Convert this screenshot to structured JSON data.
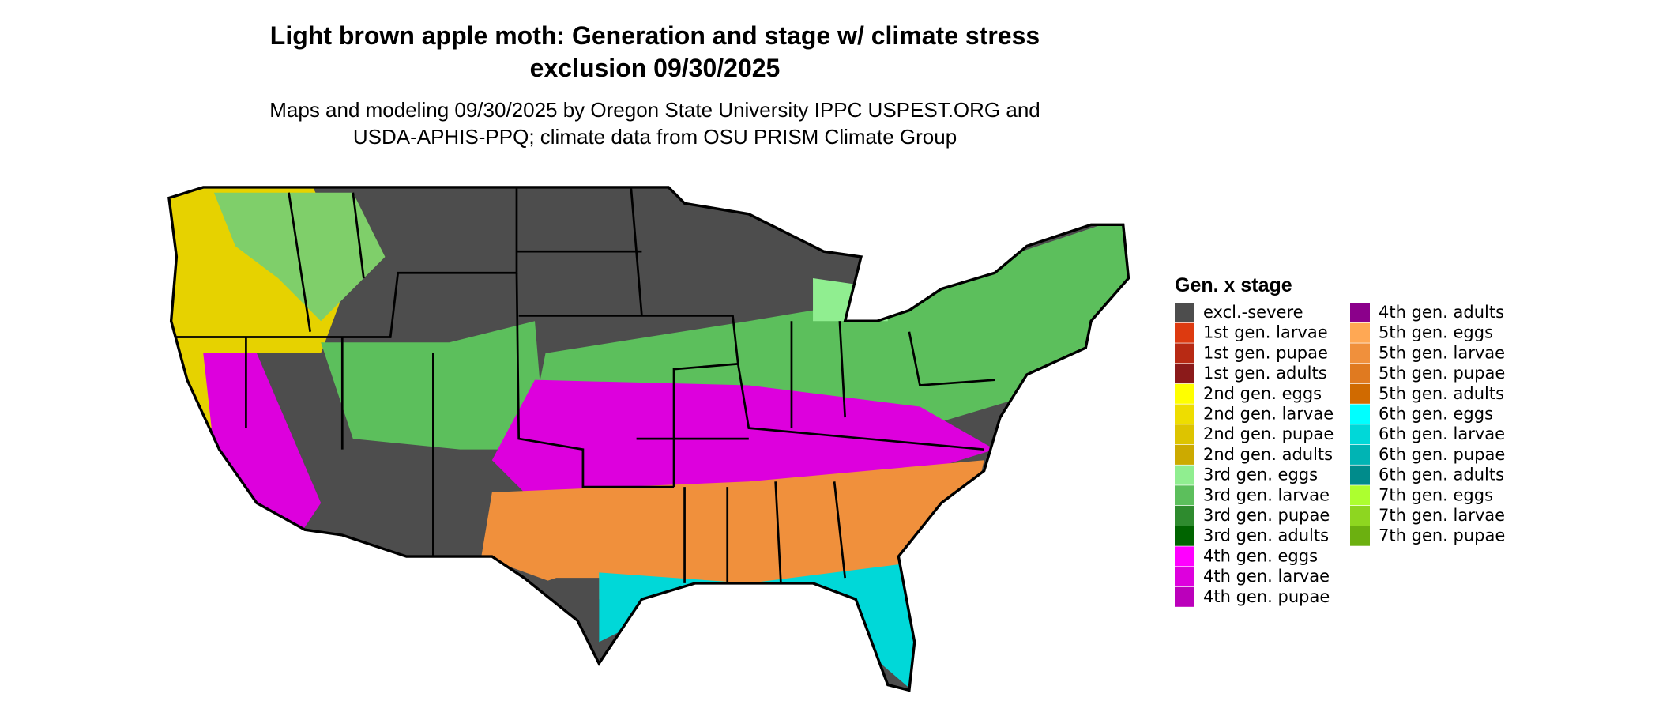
{
  "title": [
    "Light brown apple moth: Generation and stage w/ climate stress",
    "exclusion 09/30/2025"
  ],
  "subtitle": [
    "Maps and modeling 09/30/2025 by Oregon State University IPPC USPEST.ORG and",
    "USDA-APHIS-PPQ; climate data from OSU PRISM Climate Group"
  ],
  "legend": {
    "title": "Gen. x stage",
    "items": [
      {
        "label": "excl.-severe",
        "color": "#4d4d4d"
      },
      {
        "label": "1st gen. larvae",
        "color": "#dd3a10"
      },
      {
        "label": "1st gen. pupae",
        "color": "#b82a14"
      },
      {
        "label": "1st gen. adults",
        "color": "#8b1a1a"
      },
      {
        "label": "2nd gen. eggs",
        "color": "#ffff00"
      },
      {
        "label": "2nd gen. larvae",
        "color": "#eedd00"
      },
      {
        "label": "2nd gen. pupae",
        "color": "#ddc400"
      },
      {
        "label": "2nd gen. adults",
        "color": "#ccaa00"
      },
      {
        "label": "3rd gen. eggs",
        "color": "#90ee90"
      },
      {
        "label": "3rd gen. larvae",
        "color": "#5cbf5c"
      },
      {
        "label": "3rd gen. pupae",
        "color": "#2e8b2e"
      },
      {
        "label": "3rd gen. adults",
        "color": "#006400"
      },
      {
        "label": "4th gen. eggs",
        "color": "#ff00ff"
      },
      {
        "label": "4th gen. larvae",
        "color": "#dd00dd"
      },
      {
        "label": "4th gen. pupae",
        "color": "#bb00bb"
      },
      {
        "label": "4th gen. adults",
        "color": "#8b008b"
      },
      {
        "label": "5th gen. eggs",
        "color": "#ffa854"
      },
      {
        "label": "5th gen. larvae",
        "color": "#f0903c"
      },
      {
        "label": "5th gen. pupae",
        "color": "#e07a20"
      },
      {
        "label": "5th gen. adults",
        "color": "#d06a00"
      },
      {
        "label": "6th gen. eggs",
        "color": "#00ffff"
      },
      {
        "label": "6th gen. larvae",
        "color": "#00d8d8"
      },
      {
        "label": "6th gen. pupae",
        "color": "#00b4b4"
      },
      {
        "label": "6th gen. adults",
        "color": "#008b8b"
      },
      {
        "label": "7th gen. eggs",
        "color": "#adff2f"
      },
      {
        "label": "7th gen. larvae",
        "color": "#8ed620"
      },
      {
        "label": "7th gen. pupae",
        "color": "#6cb010"
      }
    ]
  }
}
